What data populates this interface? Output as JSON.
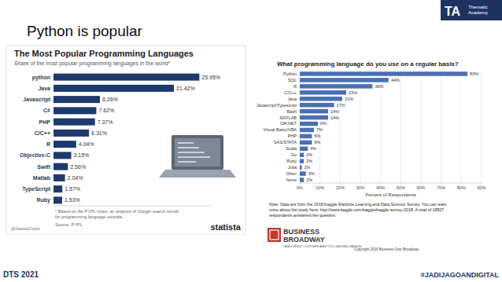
{
  "slide": {
    "title": "Python is popular",
    "brand": "TA",
    "brand_name": [
      "Thematic",
      "Academy"
    ],
    "footer_left": "DTS 2021",
    "footer_right": "#JADIJAGOANDIGITAL"
  },
  "chart_data": [
    {
      "type": "bar",
      "orientation": "horizontal",
      "title": "The Most Popular Programming Languages",
      "subtitle": "Share of the most popular programming languages in the world*",
      "categories": [
        "python",
        "Java",
        "Javascript",
        "C#",
        "PHP",
        "C/C++",
        "R",
        "Objective-C",
        "Swift",
        "Matlab",
        "TypeScript",
        "Ruby"
      ],
      "values": [
        25.95,
        21.42,
        8.26,
        7.62,
        7.37,
        6.31,
        4.04,
        3.15,
        2.56,
        2.04,
        1.57,
        1.53
      ],
      "value_labels": [
        "25.95%",
        "21.42%",
        "8.26%",
        "7.62%",
        "7.37%",
        "6.31%",
        "4.04%",
        "3.15%",
        "2.56%",
        "2.04%",
        "1.57%",
        "1.53%"
      ],
      "color": "#1e3a6e",
      "xlim": [
        0,
        28
      ],
      "grid": false,
      "data_labels": true,
      "tick_labels": "y",
      "footnote": [
        "* Based on the PYPL Index, an analysis of Google search trends",
        "for programming language tutorials."
      ],
      "source": "Source: PYPL",
      "credit": "@StatistaCharts",
      "logo": "statista"
    },
    {
      "type": "bar",
      "orientation": "horizontal",
      "title": "What programming language do you use on a regular basis?",
      "categories": [
        "Python",
        "SQL",
        "R",
        "C/C++",
        "Java",
        "Javascript/Typescript",
        "Bash",
        "MATLAB",
        "C#/.NET",
        "Visual Basic/VBA",
        "PHP",
        "SAS/STATA",
        "Scala",
        "Go",
        "Ruby",
        "Julia",
        "Other",
        "None"
      ],
      "values": [
        83,
        44,
        36,
        23,
        21,
        17,
        14,
        14,
        9,
        7,
        6,
        6,
        4,
        2,
        2,
        1,
        3,
        2
      ],
      "value_labels": [
        "83%",
        "44%",
        "36%",
        "23%",
        "21%",
        "17%",
        "14%",
        "14%",
        "9%",
        "7%",
        "6%",
        "6%",
        "4%",
        "2%",
        "2%",
        "1%",
        "3%",
        "2%"
      ],
      "color": "#4a6fb5",
      "xlim": [
        0,
        90
      ],
      "xticks": [
        {
          "value": 0,
          "label": "0%"
        },
        {
          "value": 10,
          "label": "10%"
        },
        {
          "value": 20,
          "label": "20%"
        },
        {
          "value": 30,
          "label": "30%"
        },
        {
          "value": 40,
          "label": "40%"
        },
        {
          "value": 50,
          "label": "50%"
        },
        {
          "value": 60,
          "label": "60%"
        },
        {
          "value": 70,
          "label": "70%"
        },
        {
          "value": 80,
          "label": "80%"
        },
        {
          "value": 90,
          "label": "90%"
        }
      ],
      "xlabel": "Percent of Respondents",
      "grid": true,
      "data_labels": true,
      "note": [
        "Note: Data are from the 2018 Kaggle Machine Learning and Data Science Survey. You can learn",
        "more about the study here: http://www.kaggle.com/kaggle/kaggle-survey-2018. A total of 18827",
        "respondents answered the question."
      ],
      "logo": [
        "BUSINESS",
        "BROADWAY"
      ],
      "logo_tagline": "DATA SCIENCE | CUSTOMER ANALYTICS | MACHINE LEARNING",
      "copyright": "Copyright 2019 Business Over Broadway"
    }
  ]
}
